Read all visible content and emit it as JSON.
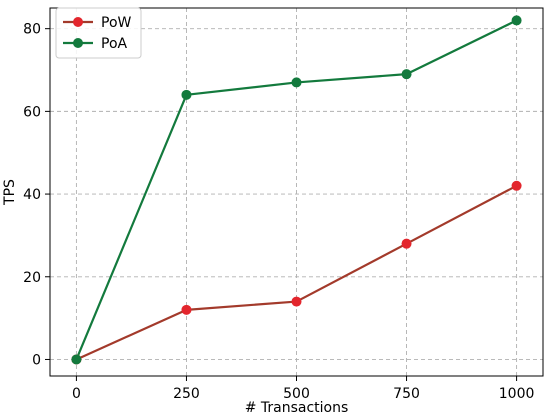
{
  "chart_data": {
    "type": "line",
    "title": "",
    "xlabel": "# Transactions",
    "ylabel": "TPS",
    "x": [
      0,
      250,
      500,
      750,
      1000
    ],
    "xticks": [
      0,
      250,
      500,
      750,
      1000
    ],
    "yticks": [
      0,
      20,
      40,
      60,
      80
    ],
    "xlim": [
      -60,
      1060
    ],
    "ylim": [
      -4,
      85
    ],
    "grid": true,
    "legend_position": "top-left",
    "series": [
      {
        "name": "PoW",
        "color": "#e3262d",
        "line_color": "#a33a2b",
        "values": [
          0,
          12,
          14,
          28,
          42
        ]
      },
      {
        "name": "PoA",
        "color": "#137a3d",
        "line_color": "#137a3d",
        "values": [
          0,
          64,
          67,
          69,
          82
        ]
      }
    ]
  }
}
